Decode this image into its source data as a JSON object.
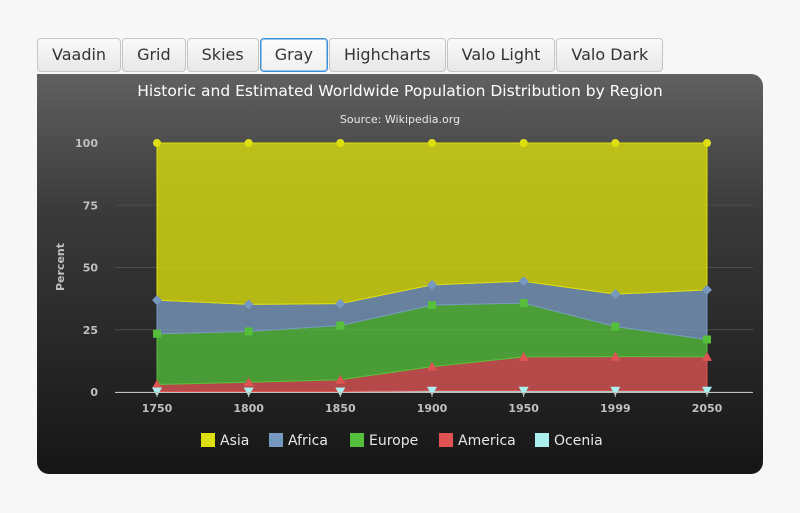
{
  "tabs": [
    {
      "label": "Vaadin",
      "active": false
    },
    {
      "label": "Grid",
      "active": false
    },
    {
      "label": "Skies",
      "active": false
    },
    {
      "label": "Gray",
      "active": true
    },
    {
      "label": "Highcharts",
      "active": false
    },
    {
      "label": "Valo Light",
      "active": false
    },
    {
      "label": "Valo Dark",
      "active": false
    }
  ],
  "chart_data": {
    "type": "area",
    "stacking": "percent",
    "title": "Historic and Estimated Worldwide Population Distribution by Region",
    "subtitle": "Source: Wikipedia.org",
    "ylabel": "Percent",
    "xlabel": "",
    "categories": [
      "1750",
      "1800",
      "1850",
      "1900",
      "1950",
      "1999",
      "2050"
    ],
    "ylim": [
      0,
      100
    ],
    "yticks": [
      "0",
      "25",
      "50",
      "75",
      "100"
    ],
    "grid": true,
    "legend_position": "bottom",
    "series": [
      {
        "name": "Asia",
        "color": "#dddf0d",
        "marker": "circle",
        "values": [
          63.1,
          64.8,
          64.5,
          57.0,
          55.5,
          60.7,
          59.0
        ]
      },
      {
        "name": "Africa",
        "color": "#7798bf",
        "marker": "diamond",
        "values": [
          13.5,
          10.9,
          8.8,
          8.1,
          8.8,
          13.0,
          19.9
        ]
      },
      {
        "name": "Europe",
        "color": "#55bf3b",
        "marker": "square",
        "values": [
          20.4,
          20.4,
          21.8,
          24.7,
          21.6,
          12.1,
          7.0
        ]
      },
      {
        "name": "America",
        "color": "#df5353",
        "marker": "triangle",
        "values": [
          2.8,
          3.7,
          4.7,
          9.7,
          13.6,
          13.7,
          13.6
        ]
      },
      {
        "name": "Ocenia",
        "color": "#aaeeee",
        "marker": "triangle-down",
        "values": [
          0.2,
          0.2,
          0.2,
          0.5,
          0.5,
          0.5,
          0.5
        ]
      }
    ]
  }
}
